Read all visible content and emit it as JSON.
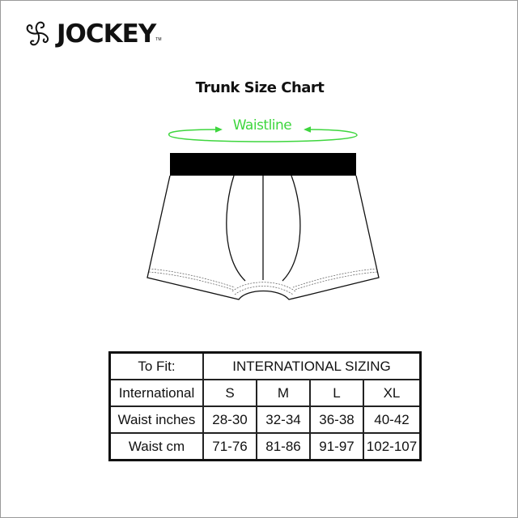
{
  "brand": {
    "name": "JOCKEY",
    "trademark": "TM"
  },
  "title": "Trunk Size Chart",
  "diagram": {
    "waist_label": "Waistline",
    "accent_color": "#3ed63e"
  },
  "table": {
    "header": {
      "to_fit": "To Fit:",
      "group": "INTERNATIONAL SIZING"
    },
    "rows": [
      {
        "label": "International",
        "values": [
          "S",
          "M",
          "L",
          "XL"
        ]
      },
      {
        "label": "Waist inches",
        "values": [
          "28-30",
          "32-34",
          "36-38",
          "40-42"
        ]
      },
      {
        "label": "Waist cm",
        "values": [
          "71-76",
          "81-86",
          "91-97",
          "102-107"
        ]
      }
    ]
  }
}
